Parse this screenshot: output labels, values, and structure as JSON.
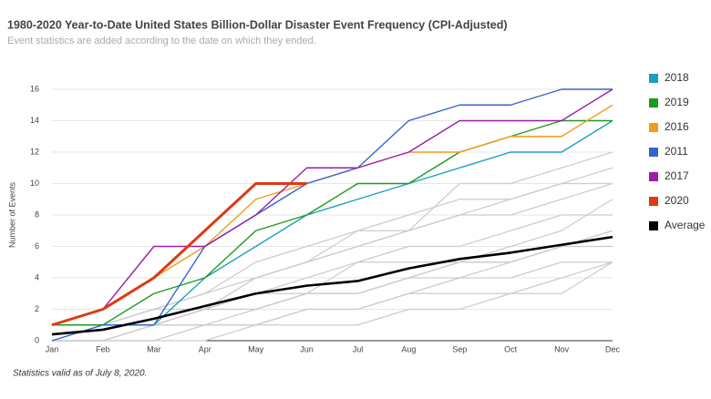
{
  "chart_data": {
    "type": "line",
    "title": "1980-2020 Year-to-Date United States Billion-Dollar Disaster Event Frequency (CPI-Adjusted)",
    "subtitle": "Event statistics are added according to the date on which they ended.",
    "y_label": "Number of Events",
    "footnote": "Statistics valid as of July 8, 2020.",
    "categories": [
      "Jan",
      "Feb",
      "Mar",
      "Apr",
      "May",
      "Jun",
      "Jul",
      "Aug",
      "Sep",
      "Oct",
      "Nov",
      "Dec"
    ],
    "ylim": [
      0,
      16
    ],
    "yticks": [
      0,
      2,
      4,
      6,
      8,
      10,
      12,
      14,
      16
    ],
    "grid": true,
    "legend": "right",
    "series": [
      {
        "color": "#cccccc",
        "values": [
          0,
          1,
          1,
          2,
          3,
          4,
          5,
          6,
          6,
          7,
          8,
          8
        ]
      },
      {
        "color": "#cccccc",
        "values": [
          0,
          0,
          1,
          1,
          2,
          3,
          3,
          4,
          5,
          5,
          6,
          7
        ]
      },
      {
        "color": "#cccccc",
        "values": [
          1,
          1,
          2,
          3,
          4,
          5,
          6,
          7,
          8,
          9,
          10,
          11
        ]
      },
      {
        "color": "#cccccc",
        "values": [
          0,
          1,
          2,
          2,
          4,
          5,
          7,
          7,
          10,
          10,
          11,
          12
        ]
      },
      {
        "color": "#cccccc",
        "values": [
          1,
          1,
          1,
          2,
          3,
          3,
          3,
          4,
          4,
          4,
          5,
          5
        ]
      },
      {
        "color": "#cccccc",
        "values": [
          0,
          0,
          0,
          1,
          1,
          2,
          2,
          3,
          3,
          3,
          4,
          5
        ]
      },
      {
        "color": "#cccccc",
        "values": [
          0,
          0,
          1,
          1,
          1,
          1,
          1,
          2,
          2,
          3,
          3,
          5
        ]
      },
      {
        "color": "#cccccc",
        "values": [
          1,
          1,
          1,
          2,
          2,
          3,
          3,
          4,
          5,
          5,
          6,
          6
        ]
      },
      {
        "color": "#cccccc",
        "values": [
          0,
          1,
          1,
          2,
          4,
          5,
          6,
          7,
          8,
          8,
          9,
          10
        ]
      },
      {
        "color": "#cccccc",
        "values": [
          0,
          0,
          0,
          0,
          1,
          2,
          2,
          3,
          4,
          5,
          6,
          7
        ]
      },
      {
        "color": "#cccccc",
        "values": [
          1,
          1,
          2,
          3,
          5,
          6,
          7,
          8,
          9,
          9,
          10,
          10
        ]
      },
      {
        "color": "#cccccc",
        "values": [
          0,
          0,
          1,
          2,
          2,
          3,
          5,
          5,
          5,
          6,
          7,
          9
        ]
      },
      {
        "name": "2018",
        "color": "#1a9fbf",
        "values": [
          1,
          1,
          1,
          4,
          6,
          8,
          9,
          10,
          11,
          12,
          12,
          14
        ]
      },
      {
        "name": "2019",
        "color": "#1e9a1e",
        "values": [
          1,
          1,
          3,
          4,
          7,
          8,
          10,
          10,
          12,
          13,
          14,
          14
        ]
      },
      {
        "name": "2016",
        "color": "#f59a1b",
        "values": [
          1,
          2,
          4,
          6,
          9,
          10,
          11,
          12,
          12,
          13,
          13,
          15
        ]
      },
      {
        "name": "2011",
        "color": "#3366cc",
        "values": [
          0,
          1,
          1,
          6,
          8,
          10,
          11,
          14,
          15,
          15,
          16,
          16
        ]
      },
      {
        "name": "2017",
        "color": "#9b1ea8",
        "values": [
          1,
          2,
          6,
          6,
          8,
          11,
          11,
          12,
          14,
          14,
          14,
          16
        ]
      },
      {
        "name": "2020",
        "color": "#dd3a13",
        "values": [
          1,
          2,
          4,
          7,
          10,
          10,
          null,
          null,
          null,
          null,
          null,
          null
        ]
      },
      {
        "name": "Average",
        "color": "#000000",
        "values": [
          0.4,
          0.7,
          1.4,
          2.2,
          3.0,
          3.5,
          3.8,
          4.6,
          5.2,
          5.6,
          6.1,
          6.6
        ]
      }
    ]
  }
}
